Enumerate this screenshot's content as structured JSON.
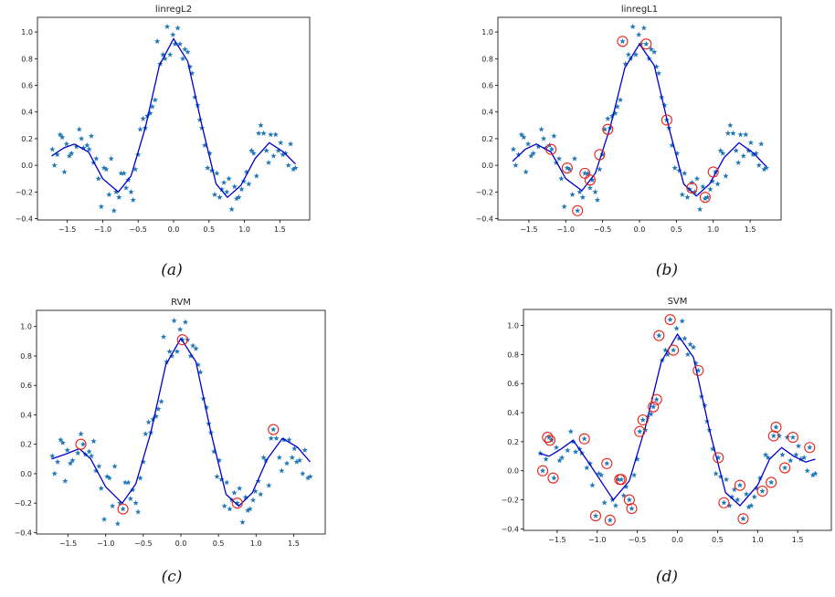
{
  "captions": [
    "(a)",
    "(b)",
    "(c)",
    "(d)"
  ],
  "colors": {
    "points": "#1f77b4",
    "curve": "#0000cc",
    "circles": "#e8231a"
  },
  "chart_data": [
    {
      "type": "scatter",
      "shared_points": true,
      "title": "linregL2",
      "xticks": [
        -1.5,
        -1.0,
        -0.5,
        0.0,
        0.5,
        1.0,
        1.5
      ],
      "yticks": [
        -0.4,
        -0.2,
        0.0,
        0.2,
        0.4,
        0.6,
        0.8,
        1.0
      ],
      "xlim": [
        -1.92,
        1.92
      ],
      "ylim": [
        -0.41,
        1.11
      ],
      "curve": [
        [
          -1.72,
          0.07
        ],
        [
          -1.55,
          0.13
        ],
        [
          -1.4,
          0.16
        ],
        [
          -1.2,
          0.1
        ],
        [
          -1.0,
          -0.1
        ],
        [
          -0.78,
          -0.2
        ],
        [
          -0.6,
          -0.08
        ],
        [
          -0.4,
          0.28
        ],
        [
          -0.2,
          0.75
        ],
        [
          0,
          0.95
        ],
        [
          0.2,
          0.78
        ],
        [
          0.4,
          0.3
        ],
        [
          0.6,
          -0.14
        ],
        [
          0.76,
          -0.24
        ],
        [
          0.95,
          -0.15
        ],
        [
          1.15,
          0.05
        ],
        [
          1.35,
          0.17
        ],
        [
          1.55,
          0.1
        ],
        [
          1.72,
          0.01
        ]
      ],
      "circled": []
    },
    {
      "type": "scatter",
      "title": "linregL1",
      "xticks": [
        -1.5,
        -1.0,
        -0.5,
        0.0,
        0.5,
        1.0,
        1.5
      ],
      "yticks": [
        -0.4,
        -0.2,
        0.0,
        0.2,
        0.4,
        0.6,
        0.8,
        1.0
      ],
      "xlim": [
        -1.92,
        1.92
      ],
      "ylim": [
        -0.41,
        1.11
      ],
      "curve": [
        [
          -1.72,
          0.03
        ],
        [
          -1.55,
          0.12
        ],
        [
          -1.4,
          0.16
        ],
        [
          -1.2,
          0.1
        ],
        [
          -1.0,
          -0.1
        ],
        [
          -0.78,
          -0.19
        ],
        [
          -0.6,
          -0.06
        ],
        [
          -0.4,
          0.28
        ],
        [
          -0.2,
          0.73
        ],
        [
          0,
          0.91
        ],
        [
          0.2,
          0.75
        ],
        [
          0.4,
          0.28
        ],
        [
          0.6,
          -0.14
        ],
        [
          0.77,
          -0.23
        ],
        [
          0.95,
          -0.14
        ],
        [
          1.15,
          0.06
        ],
        [
          1.35,
          0.17
        ],
        [
          1.55,
          0.09
        ],
        [
          1.72,
          -0.01
        ]
      ],
      "circled": [
        [
          -1.2,
          0.12
        ],
        [
          -0.98,
          -0.02
        ],
        [
          -0.84,
          -0.34
        ],
        [
          -0.74,
          -0.06
        ],
        [
          -0.67,
          -0.11
        ],
        [
          -0.54,
          0.08
        ],
        [
          -0.43,
          0.27
        ],
        [
          -0.23,
          0.93
        ],
        [
          0.09,
          0.91
        ],
        [
          0.37,
          0.34
        ],
        [
          0.71,
          -0.17
        ],
        [
          0.89,
          -0.24
        ],
        [
          1.0,
          -0.05
        ]
      ]
    },
    {
      "type": "scatter",
      "title": "RVM",
      "xticks": [
        -1.5,
        -1.0,
        -0.5,
        0.0,
        0.5,
        1.0,
        1.5
      ],
      "yticks": [
        -0.4,
        -0.2,
        0.0,
        0.2,
        0.4,
        0.6,
        0.8,
        1.0
      ],
      "xlim": [
        -1.92,
        1.92
      ],
      "ylim": [
        -0.41,
        1.11
      ],
      "curve": [
        [
          -1.72,
          0.1
        ],
        [
          -1.55,
          0.13
        ],
        [
          -1.35,
          0.17
        ],
        [
          -1.2,
          0.1
        ],
        [
          -1.0,
          -0.09
        ],
        [
          -0.78,
          -0.2
        ],
        [
          -0.6,
          -0.07
        ],
        [
          -0.4,
          0.28
        ],
        [
          -0.2,
          0.74
        ],
        [
          0,
          0.92
        ],
        [
          0.2,
          0.76
        ],
        [
          0.4,
          0.28
        ],
        [
          0.6,
          -0.14
        ],
        [
          0.77,
          -0.22
        ],
        [
          0.95,
          -0.13
        ],
        [
          1.15,
          0.1
        ],
        [
          1.35,
          0.24
        ],
        [
          1.55,
          0.18
        ],
        [
          1.72,
          0.08
        ]
      ],
      "circled": [
        [
          -1.33,
          0.2
        ],
        [
          -0.77,
          -0.24
        ],
        [
          0.02,
          0.91
        ],
        [
          0.75,
          -0.2
        ],
        [
          1.23,
          0.3
        ]
      ]
    },
    {
      "type": "scatter",
      "title": "SVM",
      "xticks": [
        -1.5,
        -1.0,
        -0.5,
        0.0,
        0.5,
        1.0,
        1.5
      ],
      "yticks": [
        -0.4,
        -0.2,
        0.0,
        0.2,
        0.4,
        0.6,
        0.8,
        1.0
      ],
      "xlim": [
        -1.92,
        1.92
      ],
      "ylim": [
        -0.41,
        1.11
      ],
      "curve": [
        [
          -1.72,
          0.12
        ],
        [
          -1.6,
          0.1
        ],
        [
          -1.45,
          0.15
        ],
        [
          -1.3,
          0.21
        ],
        [
          -1.1,
          0.05
        ],
        [
          -0.8,
          -0.2
        ],
        [
          -0.6,
          -0.07
        ],
        [
          -0.4,
          0.3
        ],
        [
          -0.2,
          0.75
        ],
        [
          0,
          0.94
        ],
        [
          0.2,
          0.78
        ],
        [
          0.4,
          0.28
        ],
        [
          0.6,
          -0.15
        ],
        [
          0.78,
          -0.24
        ],
        [
          1.0,
          -0.1
        ],
        [
          1.15,
          0.08
        ],
        [
          1.3,
          0.16
        ],
        [
          1.45,
          0.1
        ],
        [
          1.6,
          0.06
        ],
        [
          1.72,
          0.08
        ]
      ],
      "circled": [
        [
          -1.68,
          0.0
        ],
        [
          -1.62,
          0.23
        ],
        [
          -1.59,
          0.21
        ],
        [
          -1.55,
          -0.05
        ],
        [
          -1.16,
          0.22
        ],
        [
          -1.02,
          -0.31
        ],
        [
          -0.88,
          0.05
        ],
        [
          -0.84,
          -0.34
        ],
        [
          -0.72,
          -0.06
        ],
        [
          -0.7,
          -0.06
        ],
        [
          -0.6,
          -0.2
        ],
        [
          -0.57,
          -0.26
        ],
        [
          -0.47,
          0.27
        ],
        [
          -0.43,
          0.35
        ],
        [
          -0.3,
          0.44
        ],
        [
          -0.26,
          0.49
        ],
        [
          -0.23,
          0.93
        ],
        [
          -0.09,
          1.04
        ],
        [
          -0.05,
          0.83
        ],
        [
          0.26,
          0.69
        ],
        [
          0.51,
          0.09
        ],
        [
          0.58,
          -0.22
        ],
        [
          0.78,
          -0.1
        ],
        [
          0.82,
          -0.33
        ],
        [
          1.06,
          -0.14
        ],
        [
          1.17,
          -0.08
        ],
        [
          1.2,
          0.24
        ],
        [
          1.23,
          0.3
        ],
        [
          1.34,
          0.02
        ],
        [
          1.44,
          0.23
        ],
        [
          1.65,
          0.16
        ]
      ]
    }
  ],
  "points": [
    [
      -1.71,
      0.12
    ],
    [
      -1.68,
      0.0
    ],
    [
      -1.64,
      0.08
    ],
    [
      -1.6,
      0.23
    ],
    [
      -1.57,
      0.21
    ],
    [
      -1.54,
      -0.05
    ],
    [
      -1.51,
      0.16
    ],
    [
      -1.47,
      0.07
    ],
    [
      -1.44,
      0.09
    ],
    [
      -1.37,
      0.14
    ],
    [
      -1.33,
      0.27
    ],
    [
      -1.3,
      0.2
    ],
    [
      -1.27,
      0.13
    ],
    [
      -1.22,
      0.15
    ],
    [
      -1.19,
      0.12
    ],
    [
      -1.16,
      0.22
    ],
    [
      -1.13,
      0.02
    ],
    [
      -1.09,
      0.05
    ],
    [
      -1.06,
      -0.1
    ],
    [
      -1.02,
      -0.31
    ],
    [
      -0.98,
      -0.02
    ],
    [
      -0.95,
      -0.03
    ],
    [
      -0.91,
      -0.22
    ],
    [
      -0.88,
      0.05
    ],
    [
      -0.84,
      -0.34
    ],
    [
      -0.81,
      -0.2
    ],
    [
      -0.77,
      -0.24
    ],
    [
      -0.74,
      -0.06
    ],
    [
      -0.7,
      -0.06
    ],
    [
      -0.67,
      -0.17
    ],
    [
      -0.64,
      -0.11
    ],
    [
      -0.6,
      -0.2
    ],
    [
      -0.57,
      -0.26
    ],
    [
      -0.54,
      -0.03
    ],
    [
      -0.5,
      0.08
    ],
    [
      -0.47,
      0.27
    ],
    [
      -0.43,
      0.35
    ],
    [
      -0.4,
      0.28
    ],
    [
      -0.37,
      0.37
    ],
    [
      -0.33,
      0.39
    ],
    [
      -0.3,
      0.44
    ],
    [
      -0.26,
      0.49
    ],
    [
      -0.23,
      0.93
    ],
    [
      -0.19,
      0.76
    ],
    [
      -0.15,
      0.83
    ],
    [
      -0.12,
      0.8
    ],
    [
      -0.09,
      1.04
    ],
    [
      -0.05,
      0.83
    ],
    [
      -0.01,
      0.98
    ],
    [
      0.02,
      0.91
    ],
    [
      0.06,
      1.03
    ],
    [
      0.09,
      0.91
    ],
    [
      0.13,
      0.8
    ],
    [
      0.16,
      0.87
    ],
    [
      0.2,
      0.85
    ],
    [
      0.23,
      0.74
    ],
    [
      0.26,
      0.69
    ],
    [
      0.3,
      0.51
    ],
    [
      0.34,
      0.45
    ],
    [
      0.37,
      0.34
    ],
    [
      0.4,
      0.28
    ],
    [
      0.44,
      0.15
    ],
    [
      0.48,
      -0.02
    ],
    [
      0.51,
      0.09
    ],
    [
      0.54,
      -0.04
    ],
    [
      0.58,
      -0.22
    ],
    [
      0.61,
      -0.06
    ],
    [
      0.65,
      -0.24
    ],
    [
      0.68,
      -0.18
    ],
    [
      0.71,
      -0.13
    ],
    [
      0.75,
      -0.2
    ],
    [
      0.78,
      -0.1
    ],
    [
      0.82,
      -0.33
    ],
    [
      0.86,
      -0.16
    ],
    [
      0.89,
      -0.25
    ],
    [
      0.92,
      -0.24
    ],
    [
      0.96,
      -0.18
    ],
    [
      0.99,
      -0.12
    ],
    [
      1.03,
      -0.05
    ],
    [
      1.06,
      -0.14
    ],
    [
      1.1,
      0.11
    ],
    [
      1.13,
      0.09
    ],
    [
      1.17,
      -0.08
    ],
    [
      1.2,
      0.24
    ],
    [
      1.23,
      0.3
    ],
    [
      1.27,
      0.24
    ],
    [
      1.31,
      0.11
    ],
    [
      1.34,
      0.02
    ],
    [
      1.37,
      0.23
    ],
    [
      1.41,
      0.07
    ],
    [
      1.44,
      0.23
    ],
    [
      1.48,
      0.11
    ],
    [
      1.51,
      0.17
    ],
    [
      1.54,
      0.08
    ],
    [
      1.58,
      0.09
    ],
    [
      1.62,
      0.0
    ],
    [
      1.65,
      0.16
    ],
    [
      1.69,
      -0.03
    ],
    [
      1.72,
      -0.02
    ]
  ]
}
